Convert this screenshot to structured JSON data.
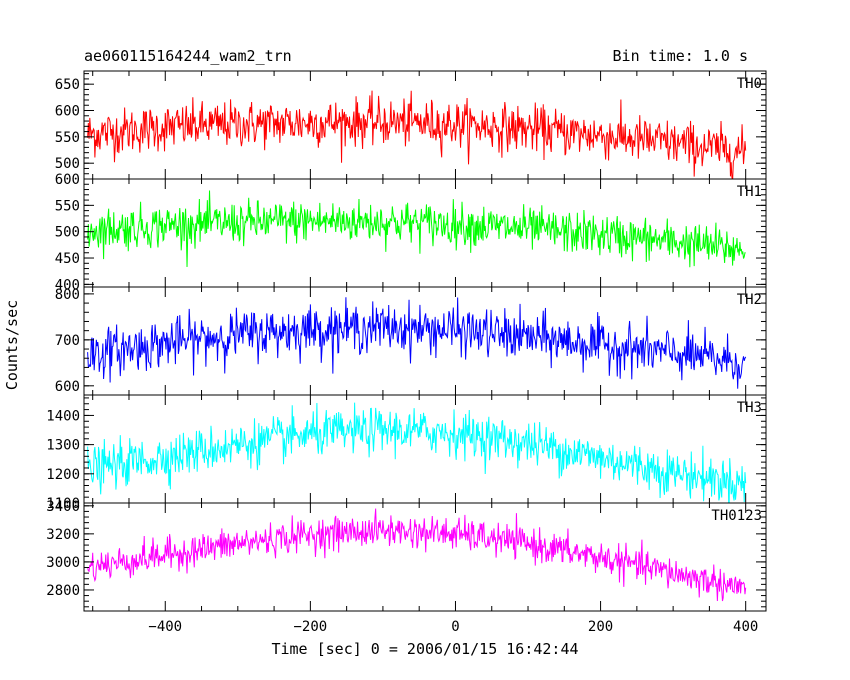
{
  "header": {
    "left": "ae060115164244_wam2_trn",
    "right": "Bin time: 1.0 s"
  },
  "chart_data": {
    "type": "line",
    "xlabel": "Time [sec] 0 = 2006/01/15 16:42:44",
    "ylabel": "Counts/sec",
    "xlim": [
      -512,
      428
    ],
    "x_ticks": [
      -400,
      -200,
      0,
      200,
      400
    ],
    "x_tick_labels": [
      "−400",
      "−200",
      "0",
      "200",
      "400"
    ],
    "bin_time_s": 1.0,
    "panels": [
      {
        "name": "TH0",
        "color": "#ff0000",
        "ylim": [
          470,
          675
        ],
        "y_ticks": [
          500,
          550,
          600,
          650
        ],
        "y_tick_labels": [
          "500",
          "550",
          "600",
          "650"
        ],
        "trend_x": [
          -507,
          -400,
          -300,
          -200,
          -100,
          0,
          100,
          200,
          300,
          400
        ],
        "trend_y": [
          555,
          568,
          574,
          577,
          578,
          574,
          565,
          553,
          538,
          520
        ],
        "noise_sd": 22
      },
      {
        "name": "TH1",
        "color": "#00ff00",
        "ylim": [
          395,
          600
        ],
        "y_ticks": [
          400,
          450,
          500,
          550,
          600
        ],
        "y_tick_labels": [
          "400",
          "450",
          "500",
          "550",
          "600"
        ],
        "trend_x": [
          -507,
          -400,
          -300,
          -200,
          -100,
          0,
          100,
          200,
          300,
          400
        ],
        "trend_y": [
          503,
          512,
          517,
          520,
          519,
          514,
          505,
          494,
          481,
          465
        ],
        "noise_sd": 20
      },
      {
        "name": "TH2",
        "color": "#0000ff",
        "ylim": [
          580,
          815
        ],
        "y_ticks": [
          600,
          700,
          800
        ],
        "y_tick_labels": [
          "600",
          "700",
          "800"
        ],
        "trend_x": [
          -507,
          -400,
          -300,
          -200,
          -100,
          0,
          100,
          200,
          300,
          400
        ],
        "trend_y": [
          668,
          693,
          712,
          723,
          727,
          721,
          706,
          689,
          670,
          650
        ],
        "noise_sd": 26
      },
      {
        "name": "TH3",
        "color": "#00ffff",
        "ylim": [
          1100,
          1470
        ],
        "y_ticks": [
          1100,
          1200,
          1300,
          1400
        ],
        "y_tick_labels": [
          "1100",
          "1200",
          "1300",
          "1400"
        ],
        "trend_x": [
          -507,
          -400,
          -300,
          -200,
          -100,
          0,
          100,
          200,
          300,
          400
        ],
        "trend_y": [
          1215,
          1258,
          1300,
          1335,
          1350,
          1340,
          1305,
          1255,
          1205,
          1165
        ],
        "noise_sd": 38
      },
      {
        "name": "TH0123",
        "color": "#ff00ff",
        "ylim": [
          2650,
          3420
        ],
        "y_ticks": [
          2800,
          3000,
          3200,
          3400
        ],
        "y_tick_labels": [
          "2800",
          "3000",
          "3200",
          "3400"
        ],
        "trend_x": [
          -507,
          -400,
          -300,
          -200,
          -100,
          0,
          100,
          200,
          300,
          400
        ],
        "trend_y": [
          2960,
          3050,
          3130,
          3195,
          3225,
          3200,
          3130,
          3030,
          2920,
          2810
        ],
        "noise_sd": 58
      }
    ]
  }
}
